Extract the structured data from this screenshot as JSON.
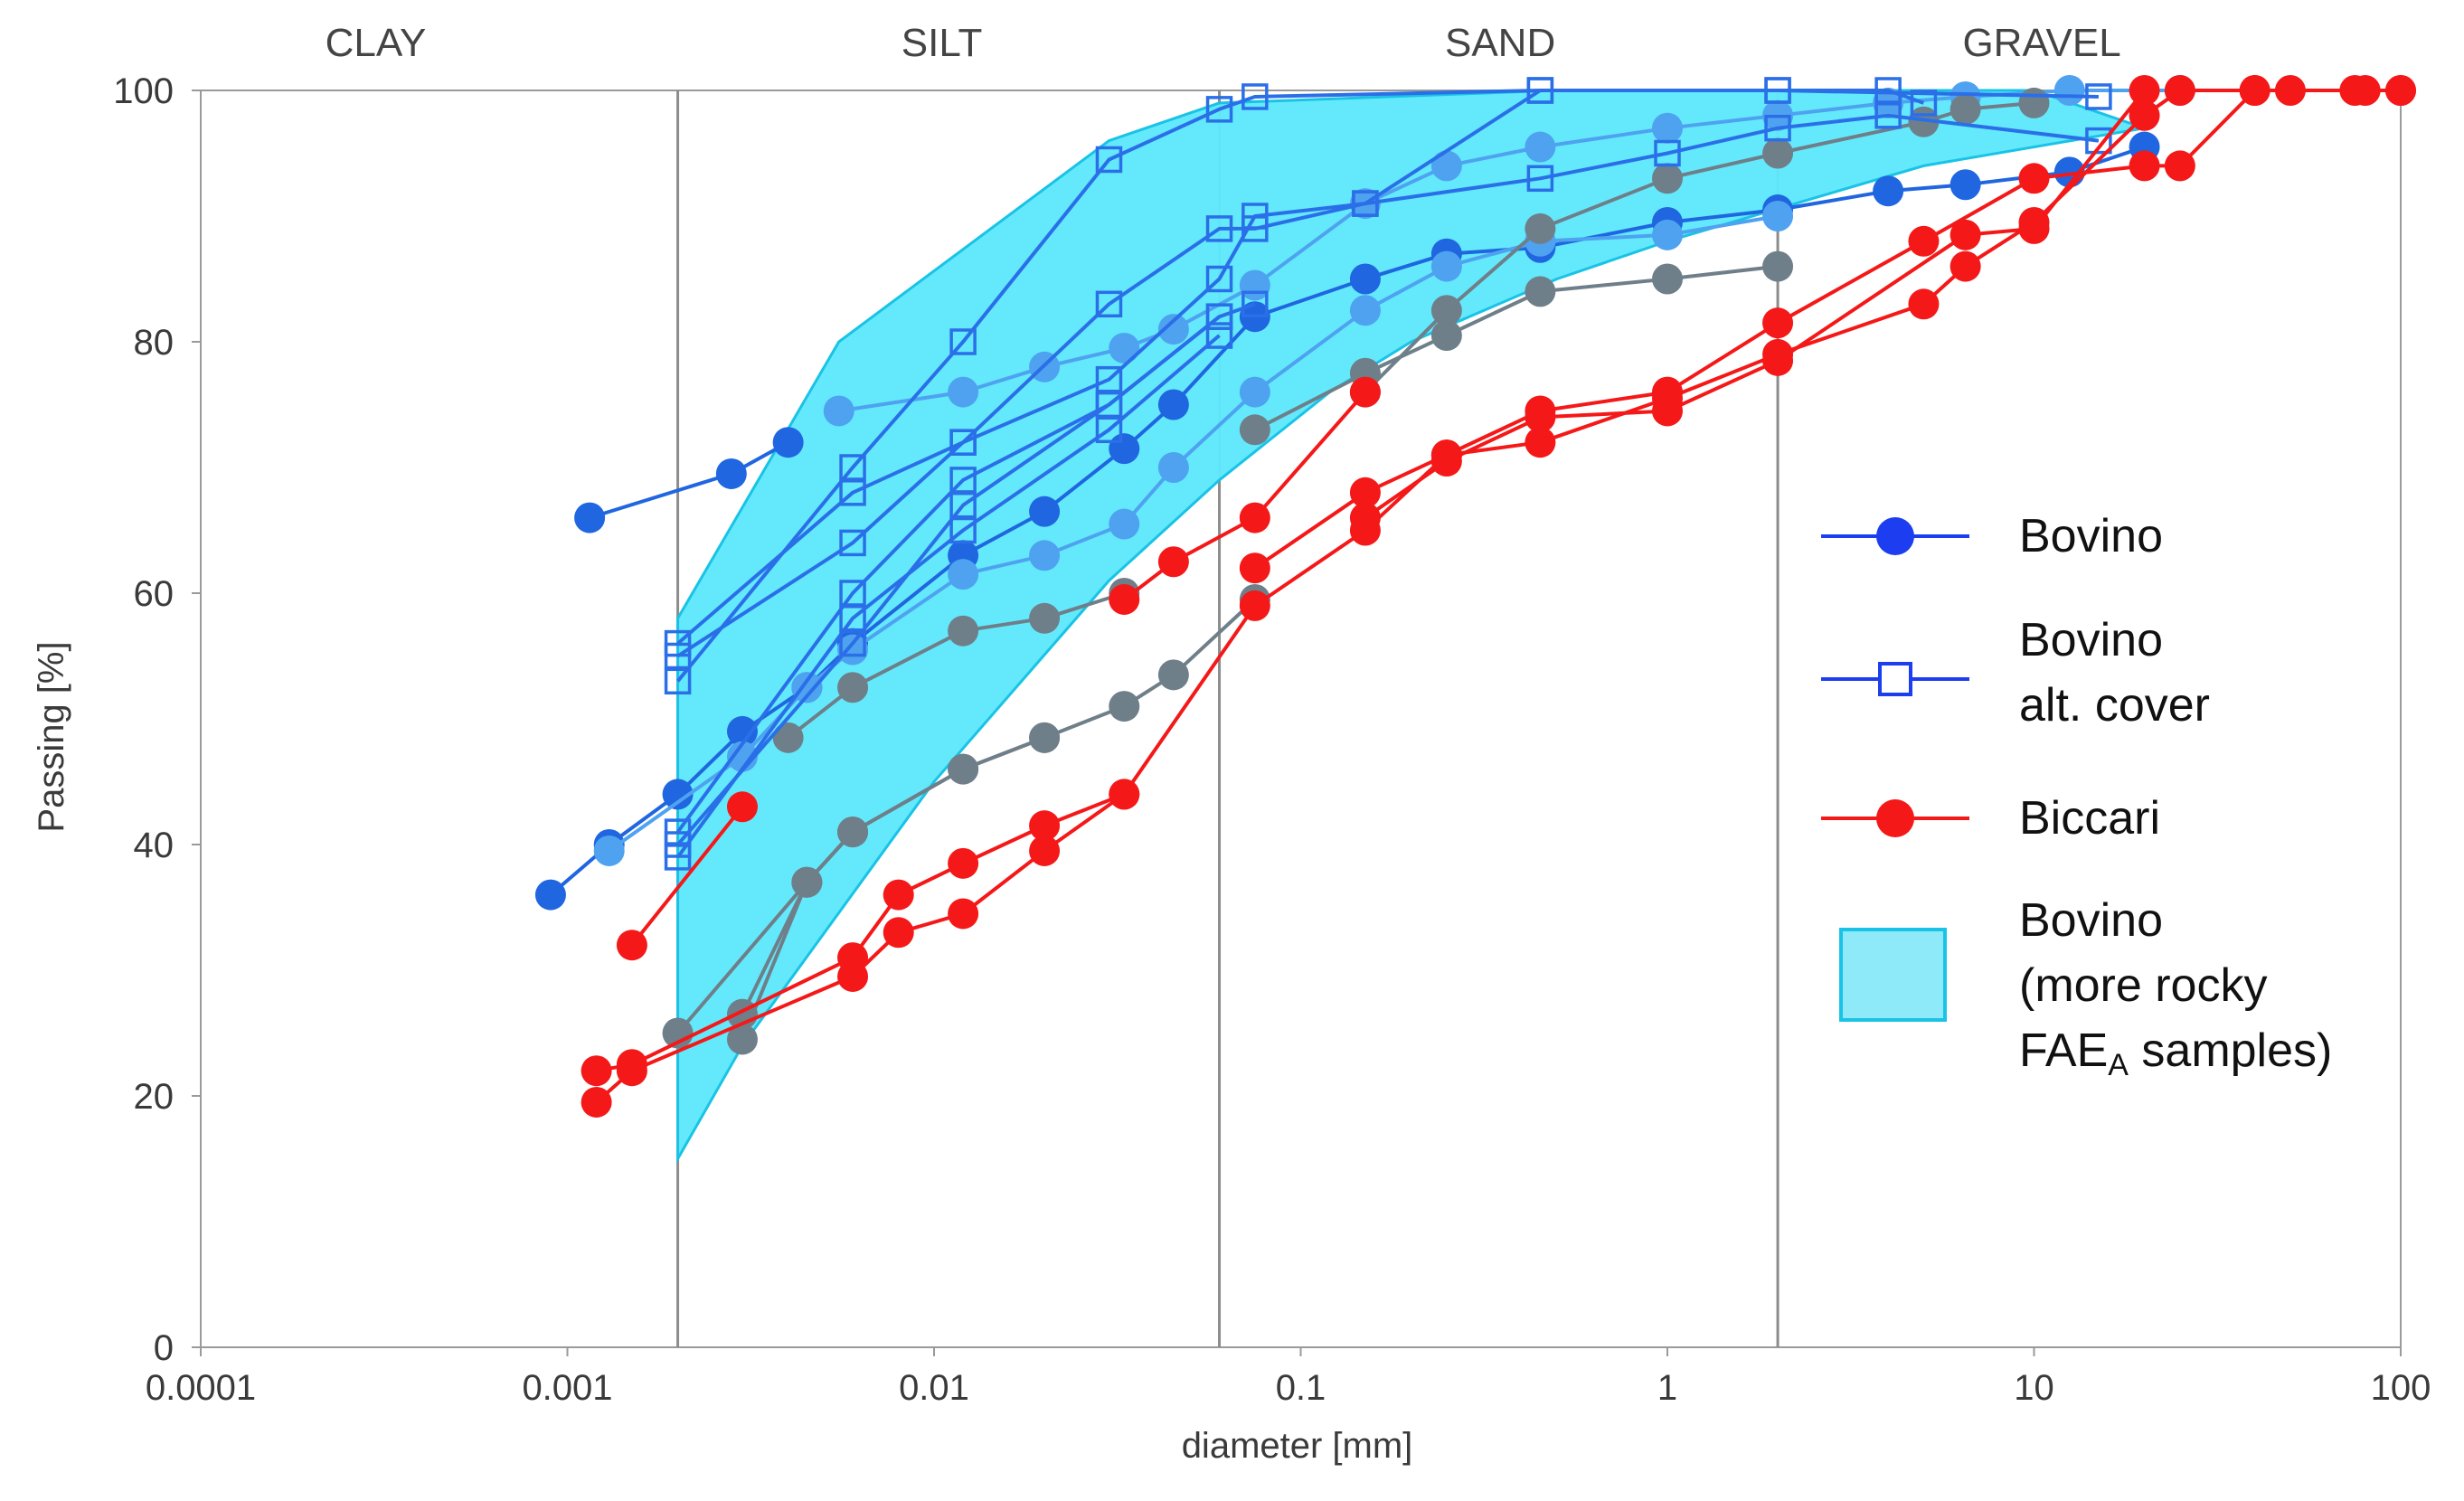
{
  "chart_data": {
    "type": "line",
    "title": "",
    "xlabel": "diameter [mm]",
    "ylabel": "Passing [%]",
    "xscale": "log",
    "xlim": [
      0.0001,
      100
    ],
    "ylim": [
      0,
      100
    ],
    "x_ticks": [
      {
        "value": 0.0001,
        "label": "0.0001"
      },
      {
        "value": 0.001,
        "label": "0.001"
      },
      {
        "value": 0.01,
        "label": "0.01"
      },
      {
        "value": 0.1,
        "label": "0.1"
      },
      {
        "value": 1,
        "label": "1"
      },
      {
        "value": 10,
        "label": "10"
      },
      {
        "value": 100,
        "label": "100"
      }
    ],
    "y_ticks": [
      {
        "value": 0,
        "label": "0"
      },
      {
        "value": 20,
        "label": "20"
      },
      {
        "value": 40,
        "label": "40"
      },
      {
        "value": 60,
        "label": "60"
      },
      {
        "value": 80,
        "label": "80"
      },
      {
        "value": 100,
        "label": "100"
      }
    ],
    "zone_boundaries": [
      0.002,
      0.06,
      2
    ],
    "zones": [
      {
        "label": "CLAY",
        "x": 0.0003
      },
      {
        "label": "SILT",
        "x": 0.0105
      },
      {
        "label": "SAND",
        "x": 0.35
      },
      {
        "label": "GRAVEL",
        "x": 10.5
      }
    ],
    "envelope": {
      "name": "Bovino (more rocky FAEA samples)",
      "color": "#5ee8fb",
      "edge": "#19c3e6",
      "points": [
        [
          0.002,
          58
        ],
        [
          0.0055,
          80
        ],
        [
          0.03,
          96
        ],
        [
          0.06,
          99
        ],
        [
          0.5,
          100
        ],
        [
          10,
          100
        ],
        [
          20,
          97
        ],
        [
          5,
          94
        ],
        [
          1,
          88
        ],
        [
          0.5,
          85
        ],
        [
          0.2,
          80
        ],
        [
          0.12,
          76
        ],
        [
          0.06,
          69
        ],
        [
          0.03,
          61
        ],
        [
          0.01,
          45
        ],
        [
          0.003,
          24
        ],
        [
          0.002,
          15
        ]
      ]
    },
    "series": [
      {
        "name": "Bovino",
        "group": "bovino",
        "marker": "circle",
        "color": "#1f66e0",
        "points": [
          [
            0.00115,
            66
          ],
          [
            0.0028,
            69.5
          ],
          [
            0.004,
            72
          ]
        ]
      },
      {
        "name": "Bovino",
        "group": "bovino",
        "marker": "circle",
        "color": "#1f66e0",
        "points": [
          [
            0.0009,
            36
          ],
          [
            0.0013,
            40
          ],
          [
            0.002,
            44
          ],
          [
            0.003,
            49
          ],
          [
            0.0045,
            52.5
          ],
          [
            0.006,
            56
          ],
          [
            0.012,
            63
          ],
          [
            0.02,
            66.5
          ],
          [
            0.033,
            71.5
          ],
          [
            0.045,
            75
          ],
          [
            0.075,
            82
          ],
          [
            0.15,
            85
          ],
          [
            0.25,
            87
          ],
          [
            0.45,
            87.5
          ],
          [
            1,
            89.5
          ],
          [
            2,
            90.5
          ],
          [
            4,
            92
          ],
          [
            6.5,
            92.5
          ],
          [
            12.5,
            93.5
          ],
          [
            20,
            95.5
          ]
        ]
      },
      {
        "name": "Bovino",
        "group": "bovino",
        "marker": "circle",
        "color": "#4fa2f0",
        "points": [
          [
            0.0013,
            39.5
          ],
          [
            0.003,
            47
          ],
          [
            0.0045,
            52.5
          ],
          [
            0.006,
            55.5
          ],
          [
            0.012,
            61.5
          ],
          [
            0.02,
            63
          ],
          [
            0.033,
            65.5
          ],
          [
            0.045,
            70
          ],
          [
            0.075,
            76
          ],
          [
            0.15,
            82.5
          ],
          [
            0.25,
            86
          ],
          [
            0.45,
            88
          ],
          [
            1,
            88.5
          ],
          [
            2,
            90
          ]
        ]
      },
      {
        "name": "Bovino",
        "group": "bovino",
        "marker": "circle",
        "color": "#4fa2f0",
        "points": [
          [
            0.0055,
            74.5
          ],
          [
            0.012,
            76
          ],
          [
            0.02,
            78
          ],
          [
            0.033,
            79.5
          ],
          [
            0.045,
            81
          ],
          [
            0.075,
            84.5
          ],
          [
            0.15,
            91
          ],
          [
            0.25,
            94
          ],
          [
            0.45,
            95.5
          ],
          [
            1,
            97
          ],
          [
            2,
            98
          ],
          [
            4,
            99
          ],
          [
            6.5,
            99.5
          ],
          [
            12.5,
            100
          ],
          [
            25,
            100
          ]
        ]
      },
      {
        "name": "Bovino",
        "group": "bovino",
        "marker": "circle",
        "color": "#6f7f8a",
        "points": [
          [
            0.002,
            25
          ],
          [
            0.0045,
            37
          ],
          [
            0.006,
            41
          ],
          [
            0.012,
            46
          ],
          [
            0.02,
            48.5
          ],
          [
            0.033,
            51
          ],
          [
            0.045,
            53.5
          ],
          [
            0.075,
            59.5
          ]
        ]
      },
      {
        "name": "Bovino",
        "group": "bovino",
        "marker": "circle",
        "color": "#6f7f8a",
        "points": [
          [
            0.003,
            24.5
          ],
          [
            0.0045,
            37
          ],
          [
            0.006,
            41
          ],
          [
            0.012,
            46
          ],
          [
            0.02,
            48.5
          ]
        ]
      },
      {
        "name": "Bovino",
        "group": "bovino",
        "marker": "circle",
        "color": "#6f7f8a",
        "points": [
          [
            0.003,
            26.5
          ],
          [
            0.0045,
            37
          ],
          [
            0.006,
            41
          ]
        ]
      },
      {
        "name": "Bovino",
        "group": "bovino",
        "marker": "circle",
        "color": "#6f7f8a",
        "points": [
          [
            0.004,
            48.5
          ],
          [
            0.006,
            52.5
          ],
          [
            0.012,
            57
          ],
          [
            0.02,
            58
          ],
          [
            0.033,
            60
          ]
        ]
      },
      {
        "name": "Bovino",
        "group": "bovino",
        "marker": "circle",
        "color": "#6f7f8a",
        "points": [
          [
            0.075,
            73
          ],
          [
            0.15,
            77.5
          ],
          [
            0.25,
            80.5
          ],
          [
            0.45,
            84
          ],
          [
            1,
            85
          ],
          [
            2,
            86
          ]
        ]
      },
      {
        "name": "Bovino",
        "group": "bovino",
        "marker": "circle",
        "color": "#6f7f8a",
        "points": [
          [
            0.15,
            76
          ],
          [
            0.25,
            82.5
          ],
          [
            0.45,
            89
          ],
          [
            1,
            93
          ],
          [
            2,
            95
          ],
          [
            5,
            97.5
          ],
          [
            6.5,
            98.5
          ],
          [
            10,
            99
          ]
        ]
      },
      {
        "name": "Bovino alt. cover",
        "group": "alt",
        "marker": "square",
        "color": "#2b6fe8",
        "points": [
          [
            0.002,
            55
          ],
          [
            0.006,
            64
          ],
          [
            0.012,
            72
          ],
          [
            0.03,
            77
          ],
          [
            0.06,
            85
          ],
          [
            0.075,
            90
          ],
          [
            0.15,
            91
          ],
          [
            0.45,
            100
          ],
          [
            2,
            100
          ],
          [
            4,
            100
          ],
          [
            5,
            99
          ]
        ]
      },
      {
        "name": "Bovino alt. cover",
        "group": "alt",
        "marker": "square",
        "color": "#2b6fe8",
        "points": [
          [
            0.002,
            53
          ],
          [
            0.006,
            70
          ],
          [
            0.012,
            80
          ],
          [
            0.03,
            94.5
          ],
          [
            0.06,
            98.5
          ],
          [
            0.075,
            99.5
          ],
          [
            0.45,
            100
          ],
          [
            2,
            100
          ],
          [
            15,
            99.5
          ]
        ]
      },
      {
        "name": "Bovino alt. cover",
        "group": "alt",
        "marker": "square",
        "color": "#2b6fe8",
        "points": [
          [
            0.002,
            56
          ],
          [
            0.006,
            68
          ],
          [
            0.012,
            72
          ],
          [
            0.03,
            83
          ],
          [
            0.06,
            89
          ],
          [
            0.075,
            89
          ],
          [
            0.15,
            91
          ],
          [
            0.45,
            93
          ],
          [
            1,
            95
          ],
          [
            2,
            97
          ],
          [
            4,
            98
          ],
          [
            15,
            96
          ]
        ]
      },
      {
        "name": "Bovino alt. cover",
        "group": "alt",
        "marker": "square",
        "color": "#2b6fe8",
        "points": [
          [
            0.002,
            41
          ],
          [
            0.006,
            60
          ],
          [
            0.012,
            69
          ],
          [
            0.03,
            75
          ],
          [
            0.06,
            82
          ],
          [
            0.075,
            83
          ]
        ]
      },
      {
        "name": "Bovino alt. cover",
        "group": "alt",
        "marker": "square",
        "color": "#2b6fe8",
        "points": [
          [
            0.002,
            39
          ],
          [
            0.006,
            58
          ],
          [
            0.012,
            65
          ],
          [
            0.03,
            73
          ],
          [
            0.06,
            80.5
          ]
        ]
      },
      {
        "name": "Bovino alt. cover",
        "group": "alt",
        "marker": "square",
        "color": "#2b6fe8",
        "points": [
          [
            0.002,
            40
          ],
          [
            0.006,
            56
          ],
          [
            0.012,
            67
          ],
          [
            0.03,
            75
          ],
          [
            0.06,
            82
          ]
        ]
      },
      {
        "name": "Biccari",
        "group": "biccari",
        "marker": "circle",
        "color": "#f51818",
        "points": [
          [
            0.0012,
            19.5
          ],
          [
            0.0015,
            22
          ],
          [
            0.006,
            29.5
          ],
          [
            0.008,
            33
          ],
          [
            0.012,
            34.5
          ],
          [
            0.02,
            39.5
          ],
          [
            0.033,
            44
          ],
          [
            0.075,
            59
          ],
          [
            0.15,
            65
          ],
          [
            0.25,
            71
          ],
          [
            0.45,
            74.5
          ],
          [
            1,
            76
          ],
          [
            2,
            81.5
          ],
          [
            5,
            88
          ],
          [
            10,
            93
          ],
          [
            20,
            94
          ],
          [
            25,
            94
          ],
          [
            40,
            100
          ],
          [
            50,
            100
          ],
          [
            80,
            100
          ],
          [
            100,
            100
          ]
        ]
      },
      {
        "name": "Biccari",
        "group": "biccari",
        "marker": "circle",
        "color": "#f51818",
        "points": [
          [
            0.0012,
            22
          ],
          [
            0.0015,
            22.5
          ],
          [
            0.006,
            31
          ],
          [
            0.008,
            36
          ],
          [
            0.012,
            38.5
          ],
          [
            0.02,
            41.5
          ],
          [
            0.033,
            44
          ]
        ]
      },
      {
        "name": "Biccari",
        "group": "biccari",
        "marker": "circle",
        "color": "#f51818",
        "points": [
          [
            0.0015,
            32
          ],
          [
            0.003,
            43
          ]
        ]
      },
      {
        "name": "Biccari",
        "group": "biccari",
        "marker": "circle",
        "color": "#f51818",
        "points": [
          [
            0.075,
            62
          ],
          [
            0.15,
            68
          ],
          [
            0.25,
            71
          ],
          [
            0.45,
            72
          ],
          [
            1,
            75.5
          ],
          [
            2,
            79
          ],
          [
            5,
            83
          ],
          [
            6.5,
            86
          ],
          [
            10,
            89.5
          ],
          [
            20,
            98
          ],
          [
            25,
            100
          ],
          [
            40,
            100
          ],
          [
            75,
            100
          ],
          [
            100,
            100
          ]
        ]
      },
      {
        "name": "Biccari",
        "group": "biccari",
        "marker": "circle",
        "color": "#f51818",
        "points": [
          [
            0.033,
            59.5
          ],
          [
            0.045,
            62.5
          ],
          [
            0.075,
            66
          ],
          [
            0.15,
            76
          ]
        ]
      },
      {
        "name": "Biccari",
        "group": "biccari",
        "marker": "circle",
        "color": "#f51818",
        "points": [
          [
            0.15,
            66
          ],
          [
            0.25,
            70.5
          ],
          [
            0.45,
            74
          ],
          [
            1,
            74.5
          ],
          [
            2,
            78.5
          ],
          [
            6.5,
            88.5
          ],
          [
            10,
            89
          ],
          [
            20,
            100
          ]
        ]
      }
    ],
    "legend": {
      "position": "right",
      "entries": [
        {
          "key": "bovino",
          "lines": [
            "Bovino"
          ],
          "marker": "circle",
          "color": "#1c3df0"
        },
        {
          "key": "alt",
          "lines": [
            "Bovino",
            "alt. cover"
          ],
          "marker": "square",
          "color": "#1c3df0"
        },
        {
          "key": "biccari",
          "lines": [
            "Biccari"
          ],
          "marker": "circle",
          "color": "#f51818"
        },
        {
          "key": "envelope",
          "lines": [
            "Bovino",
            "(more rocky",
            "FAEA samples)"
          ],
          "marker": "patch",
          "color": "#8ee9f9"
        }
      ]
    }
  }
}
